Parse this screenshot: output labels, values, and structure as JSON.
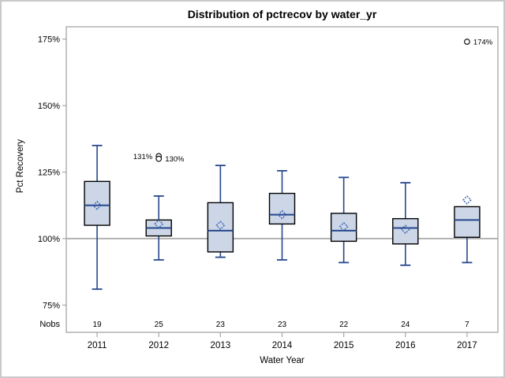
{
  "figure": {
    "background": "#ffffff",
    "border_color": "#c9c9c9"
  },
  "chart_data": {
    "type": "boxplot",
    "title": "Distribution of pctrecov by water_yr",
    "xlabel": "Water Year",
    "ylabel": "Pct Recovery",
    "y_tick_labels": [
      "175%",
      "150%",
      "125%",
      "100%",
      "75%"
    ],
    "y_tick_values": [
      175,
      150,
      125,
      100,
      75
    ],
    "ylim": [
      65,
      180
    ],
    "reference_line": 100,
    "grid": false,
    "legend": "none",
    "nobs_label": "Nobs",
    "categories": [
      "2011",
      "2012",
      "2013",
      "2014",
      "2015",
      "2016",
      "2017"
    ],
    "nobs": [
      19,
      25,
      23,
      23,
      22,
      24,
      7
    ],
    "boxes": [
      {
        "category": "2011",
        "min": 81,
        "q1": 105,
        "median": 112.5,
        "q3": 121.5,
        "max": 135,
        "mean": 112.5,
        "nobs": 19,
        "outliers": []
      },
      {
        "category": "2012",
        "min": 92,
        "q1": 101,
        "median": 104,
        "q3": 107,
        "max": 116,
        "mean": 105.5,
        "nobs": 25,
        "outliers": [
          {
            "value": 131,
            "label": "131%",
            "side": "left"
          },
          {
            "value": 130,
            "label": "130%",
            "side": "right"
          }
        ]
      },
      {
        "category": "2013",
        "min": 93,
        "q1": 95,
        "median": 103,
        "q3": 113.5,
        "max": 127.5,
        "mean": 105,
        "nobs": 23,
        "outliers": []
      },
      {
        "category": "2014",
        "min": 92,
        "q1": 105.5,
        "median": 109,
        "q3": 117,
        "max": 125.5,
        "mean": 109,
        "nobs": 23,
        "outliers": []
      },
      {
        "category": "2015",
        "min": 91,
        "q1": 99,
        "median": 103,
        "q3": 109.5,
        "max": 123,
        "mean": 104.5,
        "nobs": 22,
        "outliers": []
      },
      {
        "category": "2016",
        "min": 90,
        "q1": 98,
        "median": 104,
        "q3": 107.5,
        "max": 121,
        "mean": 103.5,
        "nobs": 24,
        "outliers": []
      },
      {
        "category": "2017",
        "min": 91,
        "q1": 100.5,
        "median": 107,
        "q3": 112,
        "max": 112,
        "mean": 114.5,
        "nobs": 7,
        "outliers": [
          {
            "value": 174,
            "label": "174%",
            "side": "right"
          }
        ]
      }
    ],
    "colors": {
      "box_fill": "#ccd6e6",
      "box_border": "#000000",
      "whisker": "#26478d",
      "median": "#26478d",
      "mean_marker": "#2b5bb0",
      "outlier_marker": "#000000",
      "axis": "#a6a6a6",
      "reference_line": "#a9a9a9",
      "text": "#000000"
    }
  }
}
